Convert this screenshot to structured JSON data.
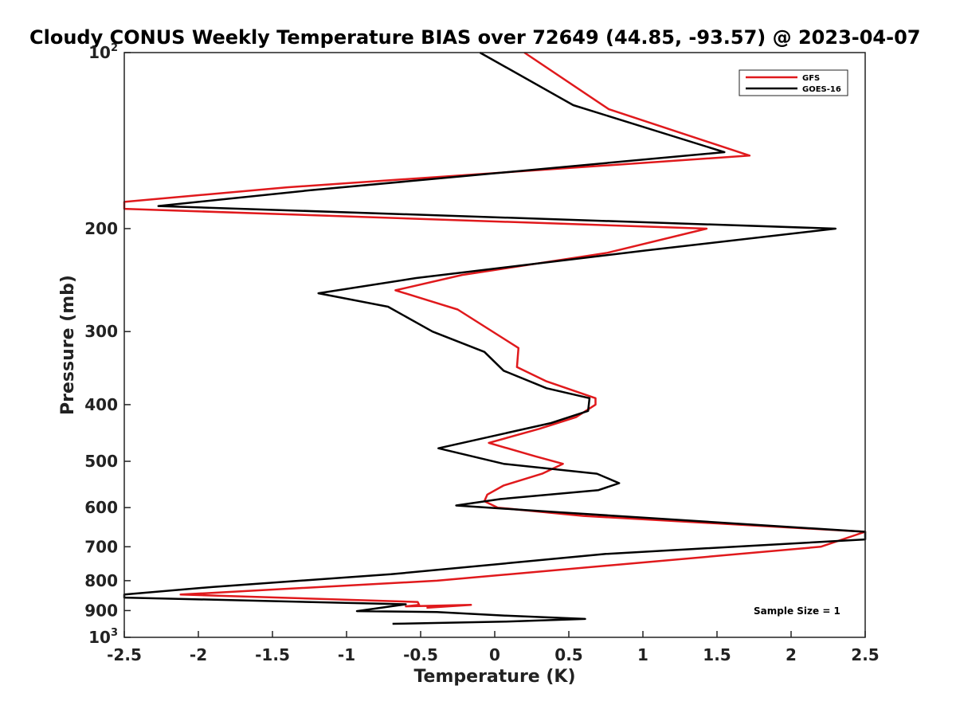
{
  "chart_data": {
    "type": "line",
    "title": "Cloudy CONUS Weekly Temperature BIAS over 72649 (44.85, -93.57) @ 2023-04-07",
    "xlabel": "Temperature (K)",
    "ylabel": "Pressure (mb)",
    "xlim": [
      -2.5,
      2.5
    ],
    "ylim": [
      100,
      1000
    ],
    "y_scale": "log",
    "y_reversed": true,
    "x_ticks": [
      -2.5,
      -2,
      -1.5,
      -1,
      -0.5,
      0,
      0.5,
      1,
      1.5,
      2,
      2.5
    ],
    "x_tick_labels": [
      "-2.5",
      "-2",
      "-1.5",
      "-1",
      "-0.5",
      "0",
      "0.5",
      "1",
      "1.5",
      "2",
      "2.5"
    ],
    "y_ticks": [
      {
        "value": 100,
        "label": "10",
        "sup": "2"
      },
      {
        "value": 200,
        "label": "200",
        "sup": ""
      },
      {
        "value": 300,
        "label": "300",
        "sup": ""
      },
      {
        "value": 400,
        "label": "400",
        "sup": ""
      },
      {
        "value": 500,
        "label": "500",
        "sup": ""
      },
      {
        "value": 600,
        "label": "600",
        "sup": ""
      },
      {
        "value": 700,
        "label": "700",
        "sup": ""
      },
      {
        "value": 800,
        "label": "800",
        "sup": ""
      },
      {
        "value": 900,
        "label": "900",
        "sup": ""
      },
      {
        "value": 1000,
        "label": "10",
        "sup": "3"
      }
    ],
    "grid": false,
    "legend_position": "top-right",
    "annotation": "Sample Size = 1",
    "series": [
      {
        "name": "GFS",
        "color": "#e0191c",
        "points": [
          [
            0.2,
            100
          ],
          [
            0.77,
            125
          ],
          [
            1.72,
            150
          ],
          [
            -1.4,
            170
          ],
          [
            -2.5,
            180
          ],
          [
            -2.5,
            185
          ],
          [
            1.43,
            200
          ],
          [
            0.76,
            220
          ],
          [
            -0.22,
            240
          ],
          [
            -0.67,
            255
          ],
          [
            -0.25,
            275
          ],
          [
            0.16,
            320
          ],
          [
            0.15,
            345
          ],
          [
            0.35,
            365
          ],
          [
            0.68,
            390
          ],
          [
            0.68,
            400
          ],
          [
            0.55,
            420
          ],
          [
            0.3,
            440
          ],
          [
            -0.04,
            465
          ],
          [
            0.27,
            490
          ],
          [
            0.46,
            505
          ],
          [
            0.32,
            525
          ],
          [
            0.06,
            550
          ],
          [
            -0.05,
            570
          ],
          [
            -0.07,
            585
          ],
          [
            0.02,
            600
          ],
          [
            0.6,
            620
          ],
          [
            2.5,
            660
          ],
          [
            2.2,
            700
          ],
          [
            -0.39,
            800
          ],
          [
            -2.12,
            845
          ],
          [
            -0.52,
            870
          ],
          [
            -0.51,
            880
          ],
          [
            -0.6,
            885
          ],
          [
            -0.16,
            880
          ],
          [
            -0.46,
            890
          ]
        ]
      },
      {
        "name": "GOES-16",
        "color": "#000000",
        "points": [
          [
            -0.1,
            100
          ],
          [
            0.53,
            123
          ],
          [
            1.55,
            148
          ],
          [
            -1.25,
            172
          ],
          [
            -2.27,
            183
          ],
          [
            2.3,
            200
          ],
          [
            1.02,
            218
          ],
          [
            -0.53,
            243
          ],
          [
            -1.19,
            258
          ],
          [
            -0.72,
            272
          ],
          [
            -0.42,
            300
          ],
          [
            -0.07,
            325
          ],
          [
            0.06,
            350
          ],
          [
            0.35,
            375
          ],
          [
            0.64,
            390
          ],
          [
            0.63,
            410
          ],
          [
            0.38,
            430
          ],
          [
            -0.38,
            475
          ],
          [
            0.06,
            505
          ],
          [
            0.69,
            525
          ],
          [
            0.84,
            545
          ],
          [
            0.7,
            560
          ],
          [
            0.04,
            580
          ],
          [
            -0.26,
            595
          ],
          [
            0.38,
            610
          ],
          [
            2.5,
            660
          ],
          [
            2.5,
            680
          ],
          [
            0.75,
            720
          ],
          [
            -0.7,
            780
          ],
          [
            -1.9,
            820
          ],
          [
            -2.5,
            845
          ],
          [
            -2.5,
            855
          ],
          [
            -0.6,
            878
          ],
          [
            -0.93,
            902
          ],
          [
            -0.39,
            905
          ],
          [
            0.07,
            918
          ],
          [
            0.61,
            930
          ],
          [
            0.07,
            940
          ],
          [
            -0.69,
            948
          ]
        ]
      }
    ]
  }
}
